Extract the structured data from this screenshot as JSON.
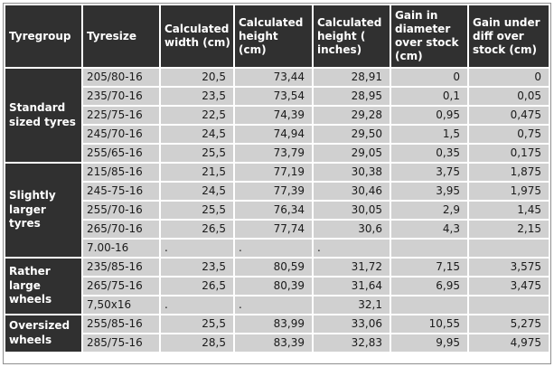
{
  "colors": {
    "header_bg": "#303030",
    "cell_bg": "#d0d0d0",
    "border": "#8f8f8f",
    "header_text": "#ffffff",
    "cell_text": "#1a1a1a"
  },
  "chart_data": {
    "type": "table",
    "columns": [
      "Tyregroup",
      "Tyresize",
      "Calculated width (cm)",
      "Calculated height (cm)",
      "Calculated height ( inches)",
      "Gain in diameter over stock (cm)",
      "Gain under diff over stock (cm)"
    ],
    "groups": [
      {
        "label": "Standard sized tyres",
        "rows": [
          {
            "tyresize": "205/80-16",
            "width_cm": "20,5",
            "height_cm": "73,44",
            "height_in": "28,91",
            "gain_diameter_cm": "0",
            "gain_under_diff_cm": "0"
          },
          {
            "tyresize": "235/70-16",
            "width_cm": "23,5",
            "height_cm": "73,54",
            "height_in": "28,95",
            "gain_diameter_cm": "0,1",
            "gain_under_diff_cm": "0,05"
          },
          {
            "tyresize": "225/75-16",
            "width_cm": "22,5",
            "height_cm": "74,39",
            "height_in": "29,28",
            "gain_diameter_cm": "0,95",
            "gain_under_diff_cm": "0,475"
          },
          {
            "tyresize": "245/70-16",
            "width_cm": "24,5",
            "height_cm": "74,94",
            "height_in": "29,50",
            "gain_diameter_cm": "1,5",
            "gain_under_diff_cm": "0,75"
          },
          {
            "tyresize": "255/65-16",
            "width_cm": "25,5",
            "height_cm": "73,79",
            "height_in": "29,05",
            "gain_diameter_cm": "0,35",
            "gain_under_diff_cm": "0,175"
          }
        ]
      },
      {
        "label": "Slightly larger tyres",
        "rows": [
          {
            "tyresize": "215/85-16",
            "width_cm": "21,5",
            "height_cm": "77,19",
            "height_in": "30,38",
            "gain_diameter_cm": "3,75",
            "gain_under_diff_cm": "1,875"
          },
          {
            "tyresize": "245-75-16",
            "width_cm": "24,5",
            "height_cm": "77,39",
            "height_in": "30,46",
            "gain_diameter_cm": "3,95",
            "gain_under_diff_cm": "1,975"
          },
          {
            "tyresize": "255/70-16",
            "width_cm": "25,5",
            "height_cm": "76,34",
            "height_in": "30,05",
            "gain_diameter_cm": "2,9",
            "gain_under_diff_cm": "1,45"
          },
          {
            "tyresize": "265/70-16",
            "width_cm": "26,5",
            "height_cm": "77,74",
            "height_in": "30,6",
            "gain_diameter_cm": "4,3",
            "gain_under_diff_cm": "2,15"
          },
          {
            "tyresize": "7.00-16",
            "width_cm": ".",
            "height_cm": ".",
            "height_in": ".",
            "gain_diameter_cm": "",
            "gain_under_diff_cm": ""
          }
        ]
      },
      {
        "label": "Rather large wheels",
        "rows": [
          {
            "tyresize": "235/85-16",
            "width_cm": "23,5",
            "height_cm": "80,59",
            "height_in": "31,72",
            "gain_diameter_cm": "7,15",
            "gain_under_diff_cm": "3,575"
          },
          {
            "tyresize": "265/75-16",
            "width_cm": "26,5",
            "height_cm": "80,39",
            "height_in": "31,64",
            "gain_diameter_cm": "6,95",
            "gain_under_diff_cm": "3,475"
          },
          {
            "tyresize": "7,50x16",
            "width_cm": ".",
            "height_cm": ".",
            "height_in": "32,1",
            "gain_diameter_cm": "",
            "gain_under_diff_cm": ""
          }
        ]
      },
      {
        "label": "Oversized wheels",
        "rows": [
          {
            "tyresize": "255/85-16",
            "width_cm": "25,5",
            "height_cm": "83,99",
            "height_in": "33,06",
            "gain_diameter_cm": "10,55",
            "gain_under_diff_cm": "5,275"
          },
          {
            "tyresize": "285/75-16",
            "width_cm": "28,5",
            "height_cm": "83,39",
            "height_in": "32,83",
            "gain_diameter_cm": "9,95",
            "gain_under_diff_cm": "4,975"
          }
        ]
      }
    ]
  }
}
